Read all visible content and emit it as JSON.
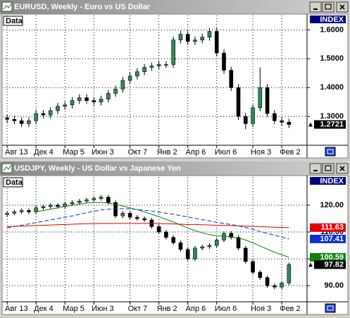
{
  "chart_data": [
    {
      "type": "candlestick",
      "title": "EURUSD, Weekly - Euro vs US Dollar",
      "panel_label": "Data",
      "scale_label": "INDEX",
      "up_color": "#2e8b57",
      "down_color": "#000000",
      "xlim": [
        -0.5,
        41.5
      ],
      "xticks": [
        {
          "value": 0,
          "label": "Авг 13"
        },
        {
          "value": 4,
          "label": "Дек 4"
        },
        {
          "value": 8,
          "label": "Мар 5"
        },
        {
          "value": 12,
          "label": "Июн 3"
        },
        {
          "value": 17,
          "label": "Окт 7"
        },
        {
          "value": 21,
          "label": "Янв 2"
        },
        {
          "value": 25,
          "label": "Апр 6"
        },
        {
          "value": 29,
          "label": "Июл 6"
        },
        {
          "value": 34,
          "label": "Ноя 3"
        },
        {
          "value": 38,
          "label": "Фев 2"
        }
      ],
      "ylim": [
        1.2,
        1.65
      ],
      "yticks": [
        {
          "value": 1.3,
          "label": "1.3000"
        },
        {
          "value": 1.4,
          "label": "1.4000"
        },
        {
          "value": 1.5,
          "label": "1.5000"
        },
        {
          "value": 1.6,
          "label": "1.6000"
        }
      ],
      "grid": true,
      "open": [
        1.295,
        1.29,
        1.285,
        1.275,
        1.285,
        1.31,
        1.305,
        1.32,
        1.335,
        1.34,
        1.355,
        1.365,
        1.355,
        1.35,
        1.36,
        1.38,
        1.395,
        1.425,
        1.44,
        1.455,
        1.47,
        1.475,
        1.48,
        1.48,
        1.565,
        1.585,
        1.56,
        1.565,
        1.575,
        1.595,
        1.52,
        1.46,
        1.4,
        1.3,
        1.275,
        1.33,
        1.4,
        1.31,
        1.285,
        1.28
      ],
      "high": [
        1.307,
        1.302,
        1.297,
        1.297,
        1.322,
        1.322,
        1.332,
        1.347,
        1.352,
        1.367,
        1.377,
        1.377,
        1.367,
        1.372,
        1.392,
        1.407,
        1.437,
        1.452,
        1.467,
        1.482,
        1.487,
        1.492,
        1.492,
        1.577,
        1.597,
        1.597,
        1.577,
        1.587,
        1.607,
        1.607,
        1.532,
        1.472,
        1.412,
        1.312,
        1.342,
        1.47,
        1.412,
        1.322,
        1.297,
        1.292
      ],
      "low": [
        1.278,
        1.273,
        1.263,
        1.263,
        1.273,
        1.293,
        1.293,
        1.308,
        1.323,
        1.328,
        1.343,
        1.343,
        1.338,
        1.338,
        1.348,
        1.368,
        1.383,
        1.413,
        1.428,
        1.443,
        1.458,
        1.463,
        1.468,
        1.468,
        1.553,
        1.548,
        1.548,
        1.553,
        1.563,
        1.508,
        1.448,
        1.388,
        1.288,
        1.255,
        1.263,
        1.318,
        1.298,
        1.273,
        1.268,
        1.26
      ],
      "close": [
        1.29,
        1.285,
        1.275,
        1.285,
        1.31,
        1.305,
        1.32,
        1.335,
        1.34,
        1.355,
        1.365,
        1.355,
        1.35,
        1.36,
        1.38,
        1.395,
        1.425,
        1.44,
        1.455,
        1.47,
        1.475,
        1.48,
        1.48,
        1.565,
        1.585,
        1.56,
        1.565,
        1.575,
        1.595,
        1.52,
        1.46,
        1.4,
        1.3,
        1.275,
        1.33,
        1.4,
        1.31,
        1.285,
        1.28,
        1.2721
      ],
      "series": []
    },
    {
      "type": "candlestick",
      "title": "USDJPY, Weekly - US Dollar vs Japanese Yen",
      "panel_label": "Data",
      "scale_label": "INDEX",
      "up_color": "#2e8b57",
      "down_color": "#000000",
      "xlim": [
        -0.5,
        41.5
      ],
      "xticks": [
        {
          "value": 0,
          "label": "Авг 13"
        },
        {
          "value": 4,
          "label": "Дек 4"
        },
        {
          "value": 8,
          "label": "Мар 5"
        },
        {
          "value": 12,
          "label": "Июн 3"
        },
        {
          "value": 17,
          "label": "Окт 7"
        },
        {
          "value": 21,
          "label": "Янв 2"
        },
        {
          "value": 25,
          "label": "Апр 6"
        },
        {
          "value": 29,
          "label": "Июл 6"
        },
        {
          "value": 34,
          "label": "Ноя 3"
        },
        {
          "value": 38,
          "label": "Фев 2"
        }
      ],
      "ylim": [
        84,
        130.5
      ],
      "yticks": [
        {
          "value": 90,
          "label": "90.00"
        },
        {
          "value": 100,
          "label": "100.00"
        },
        {
          "value": 110,
          "label": "110.00"
        },
        {
          "value": 120,
          "label": "120.00"
        }
      ],
      "grid": true,
      "open": [
        116.5,
        117.0,
        117.5,
        118.0,
        117.5,
        119.0,
        119.5,
        120.0,
        119.5,
        120.5,
        121.0,
        121.5,
        122.0,
        122.5,
        123.0,
        121.0,
        116.0,
        117.0,
        115.5,
        115.0,
        114.5,
        112.0,
        110.0,
        108.0,
        106.0,
        103.5,
        100.0,
        104.0,
        104.5,
        105.0,
        107.0,
        109.5,
        108.0,
        104.0,
        99.0,
        95.0,
        93.0,
        90.0,
        89.5,
        91.0
      ],
      "high": [
        117.8,
        118.3,
        118.8,
        118.8,
        119.8,
        120.3,
        120.8,
        120.8,
        121.3,
        121.8,
        122.3,
        122.8,
        123.3,
        123.8,
        123.8,
        121.8,
        117.8,
        117.8,
        116.3,
        115.8,
        115.3,
        112.8,
        110.8,
        108.8,
        106.8,
        104.3,
        104.8,
        105.3,
        105.8,
        107.8,
        110.3,
        110.3,
        108.8,
        104.8,
        99.8,
        95.8,
        93.8,
        90.8,
        91.8,
        98.62
      ],
      "low": [
        115.7,
        116.2,
        116.7,
        116.7,
        116.7,
        118.2,
        118.7,
        118.7,
        118.7,
        119.7,
        120.2,
        120.7,
        121.2,
        121.7,
        120.2,
        115.2,
        115.2,
        114.7,
        114.2,
        113.7,
        111.2,
        109.2,
        107.2,
        105.2,
        102.7,
        99.2,
        99.2,
        103.2,
        103.7,
        104.2,
        106.2,
        107.2,
        103.2,
        98.2,
        94.2,
        92.2,
        89.2,
        88.7,
        88.7,
        90.2
      ],
      "close": [
        117.0,
        117.5,
        118.0,
        117.5,
        119.0,
        119.5,
        120.0,
        119.5,
        120.5,
        121.0,
        121.5,
        122.0,
        122.5,
        123.0,
        121.0,
        116.0,
        117.0,
        115.5,
        115.0,
        114.5,
        112.0,
        110.0,
        108.0,
        106.0,
        103.5,
        100.0,
        104.0,
        104.5,
        105.0,
        107.0,
        109.5,
        108.0,
        104.0,
        99.0,
        95.0,
        93.0,
        90.0,
        89.5,
        91.0,
        97.82
      ],
      "series": [
        {
          "color": "#e00000",
          "values": [
            112.0,
            112.1,
            112.2,
            112.3,
            112.4,
            112.5,
            112.6,
            112.7,
            112.8,
            112.9,
            113.0,
            113.1,
            113.1,
            113.2,
            113.2,
            113.2,
            113.2,
            113.2,
            113.2,
            113.2,
            113.2,
            113.1,
            113.1,
            113.0,
            112.9,
            112.8,
            112.8,
            112.7,
            112.6,
            112.5,
            112.5,
            112.4,
            112.3,
            112.2,
            112.1,
            112.0,
            111.9,
            111.8,
            111.7,
            111.63
          ]
        },
        {
          "color": "#1030d0",
          "values": [
            111.6,
            112.0,
            112.5,
            113.0,
            113.5,
            114.0,
            114.5,
            115.0,
            115.5,
            116.0,
            116.6,
            117.2,
            117.7,
            118.2,
            118.5,
            118.7,
            118.7,
            118.6,
            118.4,
            118.1,
            117.8,
            117.4,
            117.0,
            116.6,
            116.1,
            115.6,
            115.1,
            114.6,
            114.1,
            113.6,
            113.2,
            112.8,
            112.3,
            111.7,
            111.0,
            110.2,
            109.5,
            108.8,
            108.1,
            107.41
          ]
        },
        {
          "color": "#108010",
          "values": [
            null,
            null,
            null,
            null,
            117.6,
            118.0,
            118.5,
            119.0,
            119.5,
            120.0,
            120.4,
            120.8,
            121.0,
            121.0,
            120.8,
            120.3,
            119.7,
            119.0,
            118.3,
            117.5,
            116.6,
            115.7,
            114.7,
            113.7,
            112.6,
            111.5,
            110.5,
            109.7,
            109.0,
            108.6,
            108.4,
            108.2,
            107.8,
            107.0,
            106.0,
            104.8,
            103.6,
            102.5,
            101.5,
            100.59
          ]
        }
      ]
    }
  ]
}
